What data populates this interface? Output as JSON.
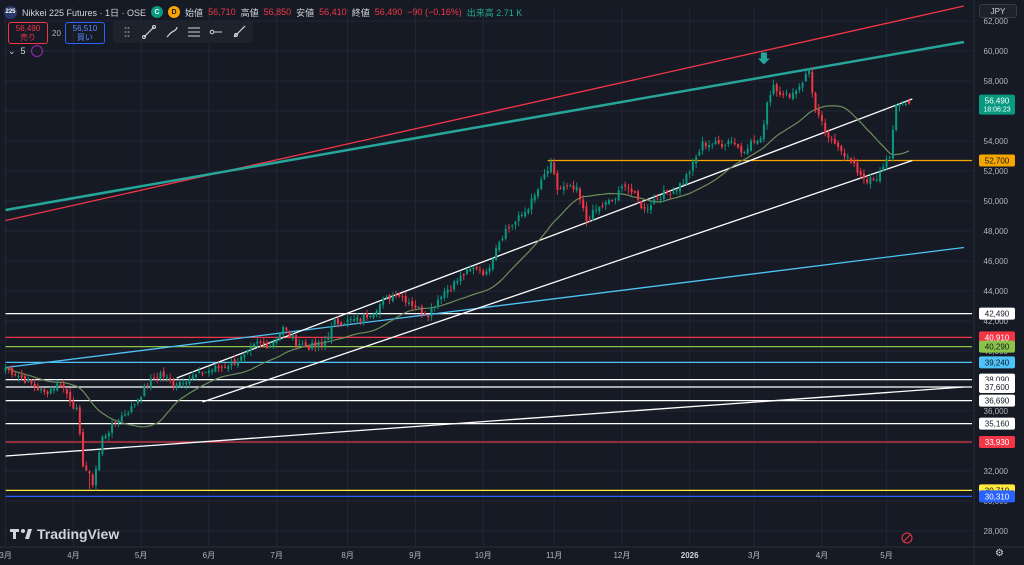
{
  "header": {
    "symbol_badge": "225",
    "title": "Nikkei 225 Futures · 1日 · OSE",
    "ohlc": [
      {
        "label": "始値",
        "value": "56,710"
      },
      {
        "label": "高値",
        "value": "56,850"
      },
      {
        "label": "安値",
        "value": "56,410"
      },
      {
        "label": "終値",
        "value": "56,490"
      }
    ],
    "change": "−90 (−0.16%)",
    "volume_text": "出来高 2.71 K",
    "badge_c": "C",
    "badge_d": "D",
    "currency": "JPY"
  },
  "trade": {
    "sell_price": "56,490",
    "sell_label": "売り",
    "spread": "20",
    "buy_price": "56,510",
    "buy_label": "買い"
  },
  "indicator": {
    "value": "5"
  },
  "brand": {
    "name": "TradingView"
  },
  "colors": {
    "background": "#161a25",
    "up": "#089981",
    "down": "#f23645",
    "teal_line": "#26a69a",
    "red_line": "#f23645",
    "blue_line": "#4fc3f7",
    "orange_line": "#f7a600",
    "sma": "#6b8f5a"
  },
  "chart_data": {
    "type": "candlestick",
    "timeframe": "1日",
    "y_axis": {
      "min": 27000,
      "max": 63000,
      "ticks": [
        28000,
        30000,
        32000,
        34000,
        36000,
        38000,
        40000,
        42000,
        44000,
        46000,
        48000,
        50000,
        52000,
        54000,
        56000,
        58000,
        60000,
        62000
      ],
      "tick_labels": [
        "28,000",
        "30,000",
        "32,000",
        "34,000",
        "36,000",
        "38,000",
        "40,000",
        "42,000",
        "44,000",
        "46,000",
        "48,000",
        "50,000",
        "52,000",
        "54,000",
        "56,000",
        "58,000",
        "60,000",
        "62,000"
      ]
    },
    "x_axis": {
      "labels": [
        "3月",
        "4月",
        "5月",
        "6月",
        "7月",
        "8月",
        "9月",
        "10月",
        "11月",
        "12月",
        "2026",
        "3月",
        "4月",
        "5月"
      ],
      "label_index": [
        0,
        21,
        42,
        63,
        84,
        106,
        127,
        148,
        170,
        191,
        212,
        232,
        253,
        273
      ]
    },
    "total_slots": 300,
    "current_price": {
      "value": 56490,
      "label": "56,490",
      "countdown": "18:06:23"
    },
    "key_points": [
      [
        0,
        38900
      ],
      [
        6,
        38100
      ],
      [
        12,
        37200
      ],
      [
        17,
        37900
      ],
      [
        22,
        36000
      ],
      [
        24,
        32500
      ],
      [
        27,
        31200
      ],
      [
        30,
        34200
      ],
      [
        35,
        35500
      ],
      [
        39,
        36200
      ],
      [
        44,
        37800
      ],
      [
        48,
        38500
      ],
      [
        52,
        37800
      ],
      [
        57,
        38200
      ],
      [
        63,
        38700
      ],
      [
        68,
        39000
      ],
      [
        74,
        39600
      ],
      [
        78,
        40500
      ],
      [
        82,
        40400
      ],
      [
        86,
        41500
      ],
      [
        90,
        40600
      ],
      [
        94,
        40300
      ],
      [
        98,
        40300
      ],
      [
        102,
        41900
      ],
      [
        106,
        42000
      ],
      [
        110,
        42100
      ],
      [
        114,
        42700
      ],
      [
        117,
        43300
      ],
      [
        121,
        43900
      ],
      [
        125,
        43300
      ],
      [
        128,
        42800
      ],
      [
        131,
        42500
      ],
      [
        135,
        43800
      ],
      [
        139,
        44500
      ],
      [
        142,
        45100
      ],
      [
        146,
        45600
      ],
      [
        149,
        45100
      ],
      [
        152,
        47000
      ],
      [
        155,
        48100
      ],
      [
        158,
        48600
      ],
      [
        161,
        49300
      ],
      [
        164,
        50300
      ],
      [
        167,
        51700
      ],
      [
        169,
        52400
      ],
      [
        171,
        50800
      ],
      [
        174,
        50900
      ],
      [
        177,
        50700
      ],
      [
        180,
        48700
      ],
      [
        183,
        49400
      ],
      [
        186,
        49800
      ],
      [
        189,
        50200
      ],
      [
        192,
        51200
      ],
      [
        195,
        50300
      ],
      [
        198,
        49400
      ],
      [
        201,
        50100
      ],
      [
        204,
        50500
      ],
      [
        207,
        50700
      ],
      [
        210,
        51300
      ],
      [
        213,
        52400
      ],
      [
        216,
        53800
      ],
      [
        219,
        53800
      ],
      [
        222,
        53800
      ],
      [
        225,
        54100
      ],
      [
        228,
        53300
      ],
      [
        231,
        53900
      ],
      [
        234,
        54000
      ],
      [
        236,
        56600
      ],
      [
        238,
        57800
      ],
      [
        241,
        57000
      ],
      [
        244,
        57200
      ],
      [
        247,
        58000
      ],
      [
        249,
        58700
      ],
      [
        251,
        56000
      ],
      [
        253,
        55100
      ],
      [
        255,
        54000
      ],
      [
        258,
        53800
      ],
      [
        261,
        52800
      ],
      [
        264,
        52000
      ],
      [
        267,
        51400
      ],
      [
        270,
        51300
      ],
      [
        272,
        52400
      ],
      [
        274,
        53100
      ],
      [
        276,
        56200
      ],
      [
        278,
        56600
      ],
      [
        280,
        56490
      ]
    ],
    "sma_period": 25,
    "trendlines": [
      {
        "name": "Red upper channel",
        "color": "#f23645",
        "points": [
          [
            0,
            48700
          ],
          [
            297,
            63000
          ]
        ]
      },
      {
        "name": "Teal resistance",
        "color": "#26a69a",
        "points": [
          [
            0,
            49400
          ],
          [
            297,
            60600
          ]
        ]
      },
      {
        "name": "Blue trendline",
        "color": "#4fc3f7",
        "points": [
          [
            0,
            38900
          ],
          [
            297,
            46900
          ]
        ]
      },
      {
        "name": "White channel top",
        "color": "#ffffff",
        "points": [
          [
            53,
            38200
          ],
          [
            281,
            56800
          ]
        ]
      },
      {
        "name": "White channel bottom",
        "color": "#ffffff",
        "points": [
          [
            61,
            36600
          ],
          [
            281,
            52700
          ]
        ]
      },
      {
        "name": "White long support",
        "color": "#ffffff",
        "points": [
          [
            0,
            33000
          ],
          [
            297,
            37600
          ]
        ]
      }
    ],
    "horizontal_levels": [
      {
        "value": 52700,
        "label": "52,700",
        "color": "#f7a600",
        "start_index": 168
      },
      {
        "value": 42490,
        "label": "42,490",
        "color": "#ffffff",
        "start_index": 0
      },
      {
        "value": 40910,
        "label": "40,910",
        "color": "#f23645",
        "start_index": 0
      },
      {
        "value": 40290,
        "label": "40,290",
        "color": "#8bc34a",
        "start_index": 0
      },
      {
        "value": 39240,
        "label": "39,240",
        "color": "#4fc3f7",
        "start_index": 0
      },
      {
        "value": 38090,
        "label": "38,090",
        "color": "#ffffff",
        "start_index": 0
      },
      {
        "value": 37600,
        "label": "37,600",
        "color": "#ffffff",
        "start_index": 0
      },
      {
        "value": 36690,
        "label": "36,690",
        "color": "#ffffff",
        "start_index": 0
      },
      {
        "value": 35160,
        "label": "35,160",
        "color": "#ffffff",
        "start_index": 0
      },
      {
        "value": 33930,
        "label": "33,930",
        "color": "#f23645",
        "start_index": 0
      },
      {
        "value": 30710,
        "label": "30,710",
        "color": "#ffeb3b",
        "start_index": 0
      },
      {
        "value": 30310,
        "label": "30,310",
        "color": "#2962ff",
        "start_index": 0
      }
    ],
    "annotations": [
      {
        "type": "arrow-down",
        "index": 235,
        "value": 59300,
        "color": "#26a69a"
      }
    ]
  }
}
